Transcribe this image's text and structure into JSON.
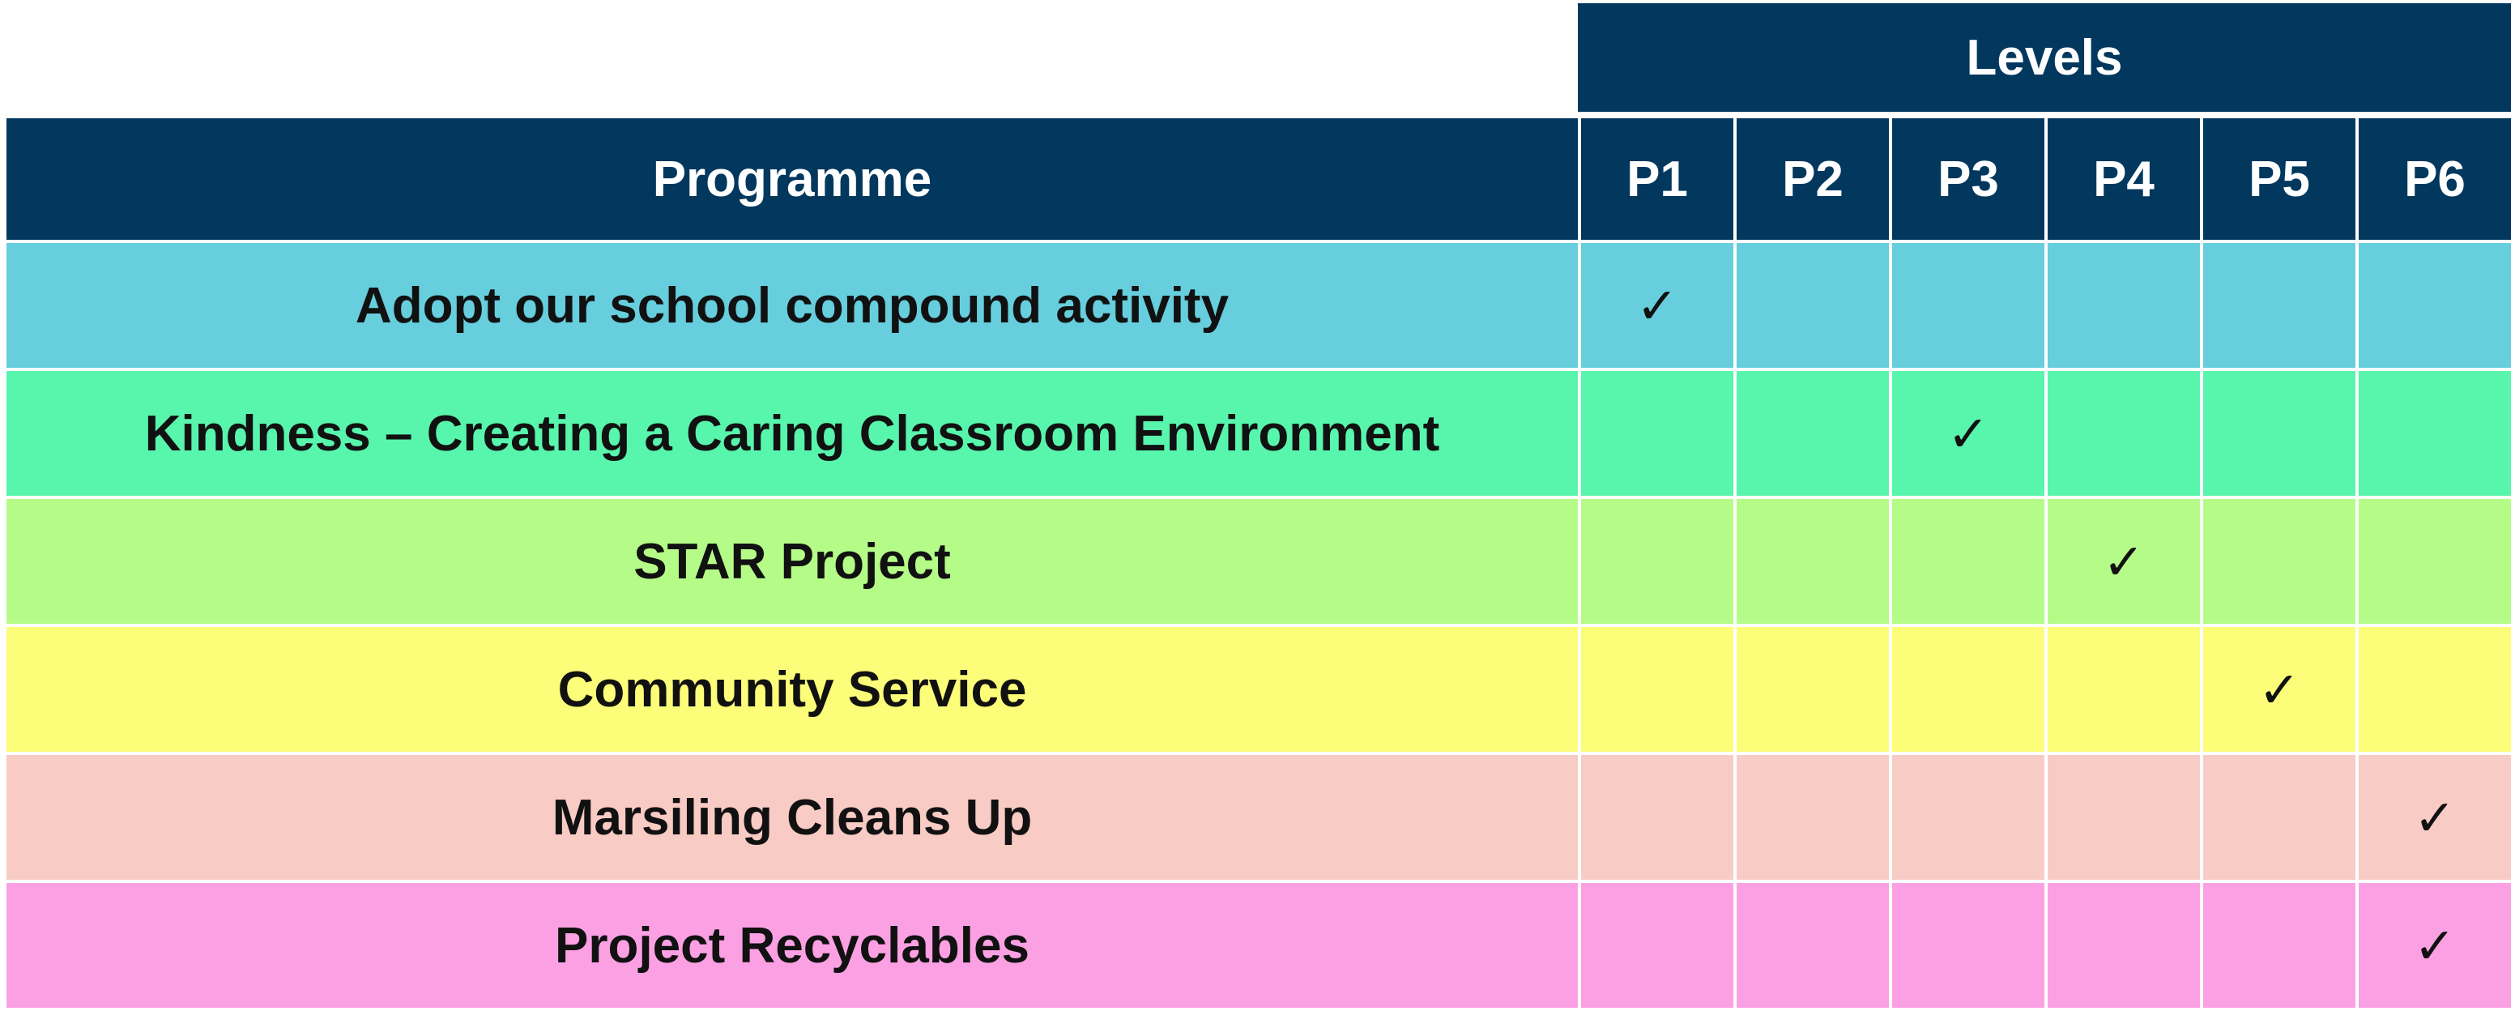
{
  "levels_header": "Levels",
  "programme_header": "Programme",
  "levels": [
    "P1",
    "P2",
    "P3",
    "P4",
    "P5",
    "P6"
  ],
  "check_symbol": "✓",
  "rows": [
    {
      "name": "Adopt our school compound activity",
      "color": "#66cedd",
      "checks": [
        true,
        false,
        false,
        false,
        false,
        false
      ]
    },
    {
      "name": "Kindness – Creating a Caring Classroom Environment",
      "color": "#58f5ad",
      "checks": [
        false,
        false,
        true,
        false,
        false,
        false
      ]
    },
    {
      "name": "STAR Project",
      "color": "#b4fc87",
      "checks": [
        false,
        false,
        false,
        true,
        false,
        false
      ]
    },
    {
      "name": "Community Service",
      "color": "#fcfd78",
      "checks": [
        false,
        false,
        false,
        false,
        true,
        false
      ]
    },
    {
      "name": "Marsiling Cleans Up",
      "color": "#f9cbc5",
      "checks": [
        false,
        false,
        false,
        false,
        false,
        true
      ]
    },
    {
      "name": "Project Recyclables",
      "color": "#fba1e3",
      "checks": [
        false,
        false,
        false,
        false,
        false,
        true
      ]
    }
  ]
}
